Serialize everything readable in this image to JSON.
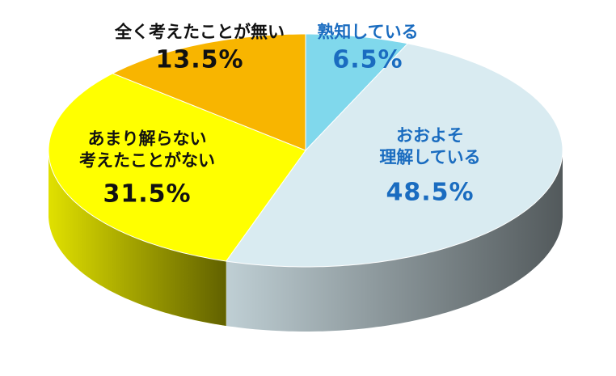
{
  "chart_data": {
    "type": "pie",
    "categories": [
      "熟知している",
      "おおよそ\n理解している",
      "あまり解らない\n考えたことがない",
      "全く考えたことが無い"
    ],
    "values": [
      6.5,
      48.5,
      31.5,
      13.5
    ],
    "value_labels": [
      "6.5%",
      "48.5%",
      "31.5%",
      "13.5%"
    ],
    "colors": [
      "#80d8ec",
      "#d9ebf1",
      "#ffff00",
      "#f8b500"
    ],
    "label_colors": [
      "#1a6cc0",
      "#1a6cc0",
      "#111111",
      "#111111"
    ]
  }
}
